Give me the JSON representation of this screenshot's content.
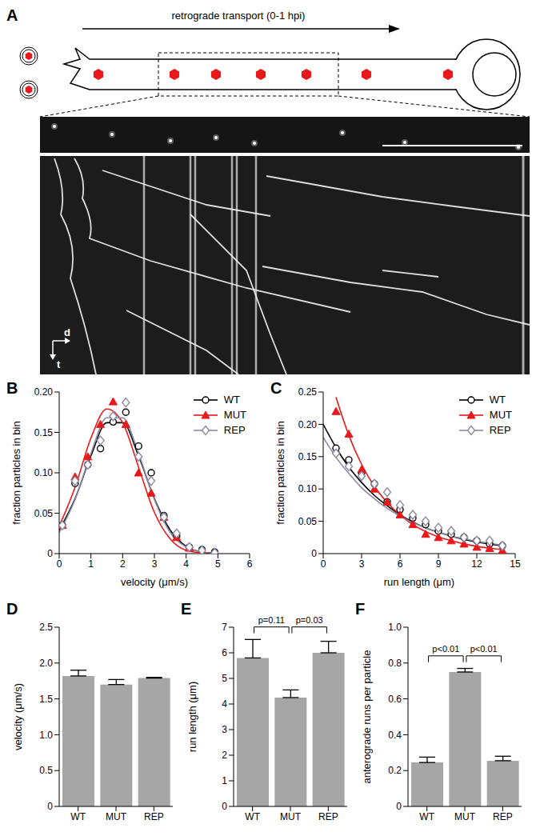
{
  "panel_a": {
    "label": "A",
    "arrow_text": "retrograde transport (0-1 hpi)",
    "distance_label": "d",
    "time_label": "t"
  },
  "chart_data": [
    {
      "panel_label": "B",
      "type": "scatter",
      "xlabel": "velocity (μm/s)",
      "ylabel": "fraction particles in bin",
      "xlim": [
        0,
        6
      ],
      "xticks": [
        0,
        1,
        2,
        3,
        4,
        5,
        6
      ],
      "ylim": [
        0,
        0.2
      ],
      "yticks": [
        0,
        0.05,
        {
          "value": 0.1,
          "label": "0.10"
        },
        0.15,
        {
          "value": 0.2,
          "label": "0.20"
        }
      ],
      "legend": "upper right",
      "series": [
        {
          "name": "WT",
          "color": "#000000",
          "marker": "circle",
          "x": [
            0.1,
            0.5,
            0.9,
            1.3,
            1.7,
            2.1,
            2.5,
            2.9,
            3.3,
            3.7,
            4.1,
            4.5,
            4.9
          ],
          "values": [
            0.035,
            0.087,
            0.11,
            0.13,
            0.163,
            0.175,
            0.133,
            0.1,
            0.047,
            0.022,
            0.008,
            0.005,
            0.002
          ],
          "fit": {
            "x": [
              0,
              0.5,
              1,
              1.5,
              2,
              2.5,
              3,
              3.5,
              4,
              4.5,
              5
            ],
            "values": [
              0.029,
              0.068,
              0.121,
              0.162,
              0.162,
              0.121,
              0.068,
              0.029,
              0.009,
              0.002,
              0.0004
            ]
          }
        },
        {
          "name": "MUT",
          "color": "#e8191b",
          "marker": "triangle",
          "x": [
            0.1,
            0.5,
            0.9,
            1.3,
            1.7,
            2.1,
            2.5,
            2.9,
            3.3,
            3.7,
            4.1,
            4.5,
            4.9
          ],
          "values": [
            0.035,
            0.095,
            0.12,
            0.16,
            0.188,
            0.16,
            0.1,
            0.075,
            0.045,
            0.02,
            0.007,
            0.003,
            0.001
          ],
          "fit": {
            "x": [
              0,
              0.5,
              1,
              1.5,
              2,
              2.5,
              3,
              3.5,
              4,
              4.5,
              5
            ],
            "values": [
              0.034,
              0.082,
              0.143,
              0.179,
              0.162,
              0.107,
              0.051,
              0.018,
              0.004,
              0.001,
              0
            ]
          }
        },
        {
          "name": "REP",
          "color": "#8a8aa6",
          "marker": "diamond",
          "x": [
            0.1,
            0.5,
            0.9,
            1.3,
            1.7,
            2.1,
            2.5,
            2.9,
            3.3,
            3.7,
            4.1,
            4.5,
            4.9
          ],
          "values": [
            0.035,
            0.09,
            0.11,
            0.14,
            0.17,
            0.187,
            0.12,
            0.09,
            0.045,
            0.025,
            0.008,
            0.004,
            0.001
          ],
          "fit": {
            "x": [
              0,
              0.5,
              1,
              1.5,
              2,
              2.5,
              3,
              3.5,
              4,
              4.5,
              5
            ],
            "values": [
              0.026,
              0.067,
              0.124,
              0.168,
              0.168,
              0.124,
              0.067,
              0.026,
              0.008,
              0.002,
              0
            ]
          }
        }
      ]
    },
    {
      "panel_label": "C",
      "type": "scatter",
      "xlabel": "run length (μm)",
      "ylabel": "fraction particles in bin",
      "xlim": [
        0,
        15
      ],
      "xticks": [
        0,
        3,
        6,
        9,
        12,
        15
      ],
      "ylim": [
        0,
        0.25
      ],
      "yticks": [
        0,
        0.05,
        {
          "value": 0.1,
          "label": "0.10"
        },
        0.15,
        {
          "value": 0.2,
          "label": "0.20"
        },
        0.25
      ],
      "legend": "upper right",
      "series": [
        {
          "name": "WT",
          "color": "#000000",
          "marker": "circle",
          "x": [
            1,
            2,
            3,
            4,
            5,
            6,
            7,
            8,
            9,
            10,
            11,
            12,
            13,
            14
          ],
          "values": [
            0.163,
            0.145,
            0.125,
            0.108,
            0.08,
            0.068,
            0.055,
            0.045,
            0.035,
            0.03,
            0.025,
            0.02,
            0.015,
            0.012
          ],
          "fit": {
            "x": [
              0,
              1,
              2,
              3,
              4,
              5,
              6,
              7,
              8,
              9,
              10,
              11,
              12,
              13,
              14
            ],
            "values": [
              0.2,
              0.164,
              0.134,
              0.11,
              0.09,
              0.074,
              0.06,
              0.049,
              0.04,
              0.033,
              0.027,
              0.022,
              0.018,
              0.015,
              0.012
            ]
          }
        },
        {
          "name": "MUT",
          "color": "#e8191b",
          "marker": "triangle",
          "x": [
            1,
            2,
            3,
            4,
            5,
            6,
            7,
            8,
            9,
            10,
            11,
            12,
            13,
            14
          ],
          "values": [
            0.22,
            0.185,
            0.13,
            0.1,
            0.08,
            0.06,
            0.045,
            0.03,
            0.025,
            0.02,
            0.015,
            0.01,
            0.008,
            0.005
          ],
          "fit": {
            "x": [
              1,
              2,
              3,
              4,
              5,
              6,
              7,
              8,
              9,
              10,
              11,
              12,
              13,
              14
            ],
            "values": [
              0.242,
              0.183,
              0.138,
              0.104,
              0.079,
              0.06,
              0.045,
              0.034,
              0.026,
              0.02,
              0.015,
              0.011,
              0.0084,
              0.0063
            ]
          }
        },
        {
          "name": "REP",
          "color": "#8a8aa6",
          "marker": "diamond",
          "x": [
            1,
            2,
            3,
            4,
            5,
            6,
            7,
            8,
            9,
            10,
            11,
            12,
            13,
            14
          ],
          "values": [
            0.155,
            0.135,
            0.12,
            0.108,
            0.095,
            0.075,
            0.06,
            0.05,
            0.04,
            0.035,
            0.025,
            0.02,
            0.02,
            0.012
          ],
          "fit": {
            "x": [
              0,
              1,
              2,
              3,
              4,
              5,
              6,
              7,
              8,
              9,
              10,
              11,
              12,
              13,
              14
            ],
            "values": [
              0.18,
              0.149,
              0.124,
              0.102,
              0.085,
              0.07,
              0.058,
              0.048,
              0.04,
              0.033,
              0.027,
              0.023,
              0.019,
              0.016,
              0.013
            ]
          }
        }
      ]
    },
    {
      "panel_label": "D",
      "type": "bar",
      "ylabel": "velocity (μm/s)",
      "categories": [
        "WT",
        "MUT",
        "REP"
      ],
      "values": [
        1.82,
        1.7,
        1.79
      ],
      "errors": [
        0.08,
        0.07,
        0.01
      ],
      "color": "#a6a6a6",
      "ylim": [
        0,
        2.5
      ],
      "yticks": [
        0,
        0.5,
        {
          "value": 1,
          "label": "1.0"
        },
        1.5,
        {
          "value": 2,
          "label": "2.0"
        },
        2.5
      ]
    },
    {
      "panel_label": "E",
      "type": "bar",
      "ylabel": "run length (μm)",
      "categories": [
        "WT",
        "MUT",
        "REP"
      ],
      "values": [
        5.8,
        4.25,
        6.0
      ],
      "errors": [
        0.72,
        0.3,
        0.45
      ],
      "color": "#a6a6a6",
      "ylim": [
        0,
        7
      ],
      "yticks": [
        0,
        1,
        2,
        3,
        4,
        5,
        6,
        7
      ],
      "annotations": [
        {
          "text": "p=0.11",
          "between": [
            "WT",
            "MUT"
          ]
        },
        {
          "text": "p=0.03",
          "between": [
            "MUT",
            "REP"
          ]
        }
      ]
    },
    {
      "panel_label": "F",
      "type": "bar",
      "ylabel": "anterograde runs per particle",
      "categories": [
        "WT",
        "MUT",
        "REP"
      ],
      "values": [
        0.245,
        0.75,
        0.255
      ],
      "errors": [
        0.03,
        0.02,
        0.025
      ],
      "color": "#a6a6a6",
      "ylim": [
        0,
        1
      ],
      "yticks": [
        0,
        0.2,
        0.4,
        0.6,
        0.8,
        {
          "value": 1,
          "label": "1.0"
        }
      ],
      "annotations": [
        {
          "text": "p<0.01",
          "between": [
            "WT",
            "MUT"
          ]
        },
        {
          "text": "p<0.01",
          "between": [
            "MUT",
            "REP"
          ]
        }
      ]
    }
  ]
}
